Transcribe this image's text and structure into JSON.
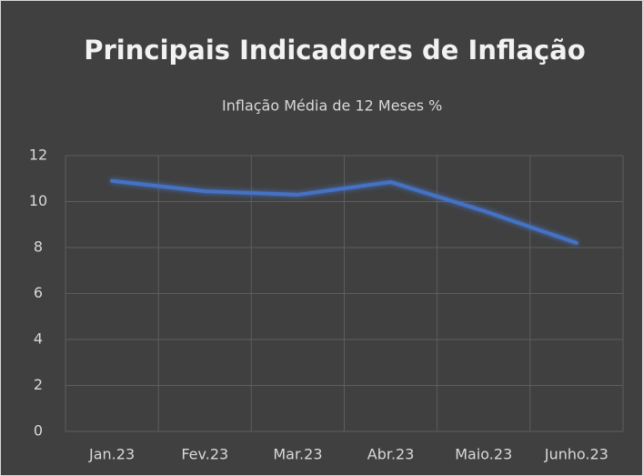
{
  "chart_data": {
    "type": "line",
    "title": "Principais Indicadores de Inflação",
    "categories": [
      "Jan.23",
      "Fev.23",
      "Mar.23",
      "Abr.23",
      "Maio.23",
      "Junho.23"
    ],
    "series": [
      {
        "name": "Inflação Média de 12 Meses %",
        "color": "#4472c4",
        "values": [
          10.9,
          10.45,
          10.3,
          10.85,
          9.6,
          8.2
        ]
      }
    ],
    "ylim": [
      0,
      12
    ],
    "yticks": [
      0,
      2,
      4,
      6,
      8,
      10,
      12
    ],
    "grid": true,
    "legend": "top"
  }
}
